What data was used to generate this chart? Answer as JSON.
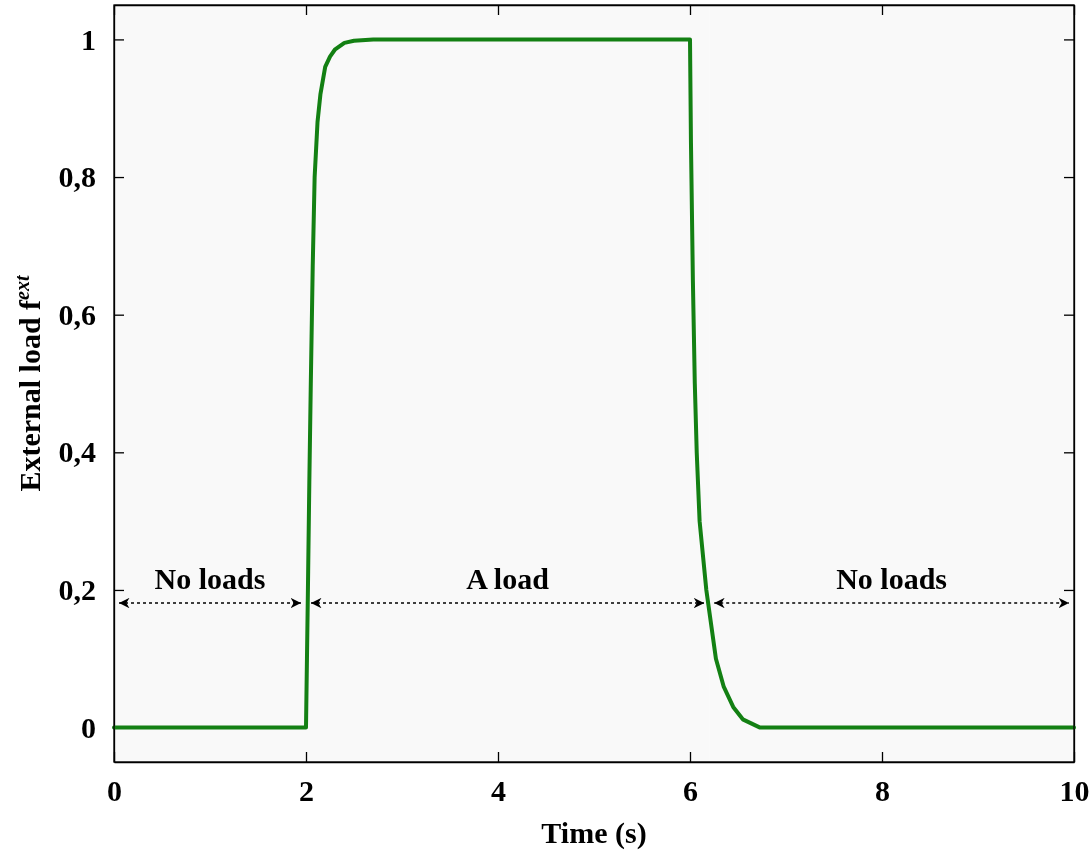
{
  "chart_data": {
    "type": "line",
    "xlabel": "Time (s)",
    "ylabel": "External load f$^{ext}$",
    "xlim": [
      0,
      10
    ],
    "xticks": [
      0,
      2,
      4,
      6,
      8,
      10
    ],
    "ylim": [
      -0.05,
      1.05
    ],
    "yticks": [
      0,
      {
        "value": 0.2,
        "label": "0,2"
      },
      {
        "value": 0.4,
        "label": "0,4"
      },
      {
        "value": 0.6,
        "label": "0,6"
      },
      {
        "value": 0.8,
        "label": "0,8"
      },
      1
    ],
    "grid": false,
    "line_style": "solid",
    "marker": "none",
    "series": [
      {
        "color": "#138013",
        "x": [
          0,
          2,
          2.01,
          2.02,
          2.035,
          2.05,
          2.07,
          2.09,
          2.12,
          2.15,
          2.2,
          2.25,
          2.3,
          2.4,
          2.5,
          2.7,
          3,
          6,
          6.01,
          6.03,
          6.05,
          6.07,
          6.1,
          6.17,
          6.27,
          6.35,
          6.45,
          6.55,
          6.73,
          7,
          10
        ],
        "values": [
          0,
          0,
          0.1,
          0.2,
          0.36,
          0.5,
          0.67,
          0.8,
          0.88,
          0.92,
          0.96,
          0.975,
          0.985,
          0.995,
          0.998,
          1,
          1,
          1,
          0.85,
          0.65,
          0.5,
          0.4,
          0.3,
          0.2,
          0.1,
          0.06,
          0.03,
          0.012,
          0,
          0,
          0
        ]
      }
    ],
    "bands": [
      {
        "axis": "x",
        "from": 0,
        "to": 2,
        "label": "No loads"
      },
      {
        "axis": "x",
        "from": 2,
        "to": 6.2,
        "label": "A load"
      },
      {
        "axis": "x",
        "from": 6.2,
        "to": 10,
        "label": "No loads"
      }
    ]
  }
}
